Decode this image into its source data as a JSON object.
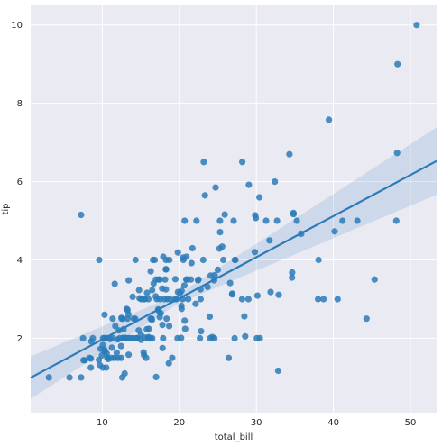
{
  "chart_data": {
    "type": "scatter",
    "title": "",
    "xlabel": "total_bill",
    "ylabel": "tip",
    "xlim": [
      0.7,
      53.4
    ],
    "ylim": [
      0.1,
      10.5
    ],
    "xticks": [
      10,
      20,
      30,
      40,
      50
    ],
    "yticks": [
      2,
      4,
      6,
      8,
      10
    ],
    "grid": true,
    "colors": {
      "point": "#2b7bb9",
      "line": "#2b7bb9",
      "band": "#2b7bb9",
      "background": "#eaeaf2",
      "grid": "#ffffff"
    },
    "regression": {
      "x_range": [
        0.7,
        53.4
      ],
      "intercept": 0.92,
      "slope": 0.105,
      "ci_halfwidth_at_mean": 0.12,
      "ci_growth": 0.022,
      "x_mean": 19.8
    },
    "points": [
      [
        3.07,
        1.0
      ],
      [
        5.75,
        1.0
      ],
      [
        7.25,
        1.0
      ],
      [
        7.25,
        5.15
      ],
      [
        7.51,
        2.0
      ],
      [
        7.56,
        1.44
      ],
      [
        7.74,
        1.44
      ],
      [
        8.35,
        1.5
      ],
      [
        8.51,
        1.25
      ],
      [
        8.52,
        1.48
      ],
      [
        8.58,
        1.92
      ],
      [
        8.77,
        2.0
      ],
      [
        9.55,
        1.45
      ],
      [
        9.6,
        4.0
      ],
      [
        9.68,
        1.32
      ],
      [
        9.78,
        1.73
      ],
      [
        9.94,
        1.56
      ],
      [
        10.07,
        1.83
      ],
      [
        10.07,
        1.25
      ],
      [
        10.09,
        2.0
      ],
      [
        10.27,
        1.71
      ],
      [
        10.29,
        2.6
      ],
      [
        10.33,
        1.67
      ],
      [
        10.33,
        2.0
      ],
      [
        10.34,
        1.66
      ],
      [
        10.34,
        2.0
      ],
      [
        10.51,
        1.25
      ],
      [
        10.59,
        1.61
      ],
      [
        10.63,
        2.0
      ],
      [
        10.65,
        1.5
      ],
      [
        10.77,
        1.47
      ],
      [
        11.02,
        1.98
      ],
      [
        11.17,
        1.5
      ],
      [
        11.24,
        1.76
      ],
      [
        11.35,
        2.5
      ],
      [
        11.38,
        2.0
      ],
      [
        11.59,
        1.5
      ],
      [
        11.61,
        3.39
      ],
      [
        11.69,
        2.31
      ],
      [
        11.87,
        1.63
      ],
      [
        12.02,
        1.97
      ],
      [
        12.03,
        1.5
      ],
      [
        12.16,
        2.2
      ],
      [
        12.26,
        2.0
      ],
      [
        12.43,
        1.8
      ],
      [
        12.46,
        1.5
      ],
      [
        12.48,
        2.52
      ],
      [
        12.54,
        2.5
      ],
      [
        12.6,
        1.0
      ],
      [
        12.66,
        2.5
      ],
      [
        12.69,
        2.0
      ],
      [
        12.74,
        2.01
      ],
      [
        12.76,
        2.23
      ],
      [
        12.9,
        1.1
      ],
      [
        13.0,
        2.0
      ],
      [
        13.03,
        2.0
      ],
      [
        13.13,
        2.0
      ],
      [
        13.16,
        2.75
      ],
      [
        13.27,
        2.5
      ],
      [
        13.28,
        2.72
      ],
      [
        13.37,
        2.0
      ],
      [
        13.39,
        2.61
      ],
      [
        13.42,
        1.58
      ],
      [
        13.42,
        3.48
      ],
      [
        13.51,
        2.0
      ],
      [
        13.81,
        2.0
      ],
      [
        13.94,
        3.06
      ],
      [
        14.07,
        2.5
      ],
      [
        14.15,
        2.0
      ],
      [
        14.26,
        2.5
      ],
      [
        14.31,
        4.0
      ],
      [
        14.48,
        2.0
      ],
      [
        14.52,
        2.0
      ],
      [
        14.73,
        2.2
      ],
      [
        14.78,
        3.23
      ],
      [
        14.83,
        3.02
      ],
      [
        15.01,
        2.09
      ],
      [
        15.04,
        1.96
      ],
      [
        15.06,
        3.0
      ],
      [
        15.36,
        1.64
      ],
      [
        15.38,
        3.0
      ],
      [
        15.42,
        1.57
      ],
      [
        15.48,
        2.02
      ],
      [
        15.53,
        3.0
      ],
      [
        15.69,
        1.5
      ],
      [
        15.77,
        2.23
      ],
      [
        15.81,
        3.16
      ],
      [
        15.95,
        2.0
      ],
      [
        15.98,
        2.03
      ],
      [
        15.98,
        3.0
      ],
      [
        16.0,
        2.0
      ],
      [
        16.04,
        2.24
      ],
      [
        16.27,
        2.5
      ],
      [
        16.29,
        3.71
      ],
      [
        16.31,
        2.0
      ],
      [
        16.4,
        2.5
      ],
      [
        16.45,
        2.47
      ],
      [
        16.47,
        3.23
      ],
      [
        16.49,
        2.0
      ],
      [
        16.58,
        4.0
      ],
      [
        16.66,
        3.4
      ],
      [
        16.82,
        4.0
      ],
      [
        16.93,
        3.07
      ],
      [
        16.97,
        3.5
      ],
      [
        16.99,
        1.01
      ],
      [
        17.07,
        3.0
      ],
      [
        17.26,
        2.74
      ],
      [
        17.29,
        2.71
      ],
      [
        17.31,
        3.5
      ],
      [
        17.46,
        2.54
      ],
      [
        17.47,
        3.5
      ],
      [
        17.51,
        3.0
      ],
      [
        17.59,
        2.64
      ],
      [
        17.78,
        3.27
      ],
      [
        17.81,
        2.34
      ],
      [
        17.82,
        1.75
      ],
      [
        17.89,
        2.0
      ],
      [
        17.92,
        4.08
      ],
      [
        18.04,
        3.0
      ],
      [
        18.15,
        3.5
      ],
      [
        18.24,
        3.76
      ],
      [
        18.26,
        3.25
      ],
      [
        18.28,
        4.0
      ],
      [
        18.29,
        3.76
      ],
      [
        18.35,
        2.5
      ],
      [
        18.43,
        3.0
      ],
      [
        18.64,
        1.36
      ],
      [
        18.69,
        2.31
      ],
      [
        18.71,
        4.0
      ],
      [
        18.78,
        3.0
      ],
      [
        19.08,
        1.5
      ],
      [
        19.44,
        3.0
      ],
      [
        19.49,
        3.51
      ],
      [
        19.65,
        3.0
      ],
      [
        19.77,
        2.0
      ],
      [
        19.81,
        4.19
      ],
      [
        19.82,
        3.18
      ],
      [
        20.08,
        3.15
      ],
      [
        20.23,
        2.01
      ],
      [
        20.27,
        2.83
      ],
      [
        20.29,
        2.75
      ],
      [
        20.29,
        3.21
      ],
      [
        20.45,
        3.0
      ],
      [
        20.49,
        4.06
      ],
      [
        20.53,
        4.0
      ],
      [
        20.65,
        3.35
      ],
      [
        20.69,
        2.45
      ],
      [
        20.69,
        5.0
      ],
      [
        20.76,
        2.24
      ],
      [
        20.9,
        3.5
      ],
      [
        20.92,
        4.08
      ],
      [
        21.01,
        3.5
      ],
      [
        21.16,
        3.0
      ],
      [
        21.5,
        3.5
      ],
      [
        21.58,
        3.92
      ],
      [
        21.7,
        4.3
      ],
      [
        22.12,
        2.88
      ],
      [
        22.23,
        5.0
      ],
      [
        22.42,
        3.48
      ],
      [
        22.49,
        3.5
      ],
      [
        22.67,
        2.0
      ],
      [
        22.75,
        3.25
      ],
      [
        22.76,
        3.0
      ],
      [
        22.82,
        2.18
      ],
      [
        23.1,
        4.0
      ],
      [
        23.17,
        6.5
      ],
      [
        23.33,
        5.65
      ],
      [
        23.68,
        3.31
      ],
      [
        23.95,
        2.55
      ],
      [
        24.01,
        2.0
      ],
      [
        24.06,
        3.6
      ],
      [
        24.27,
        2.03
      ],
      [
        24.52,
        3.48
      ],
      [
        24.55,
        2.0
      ],
      [
        24.59,
        3.61
      ],
      [
        24.71,
        5.85
      ],
      [
        25.0,
        3.75
      ],
      [
        25.21,
        4.29
      ],
      [
        25.28,
        5.0
      ],
      [
        25.29,
        4.71
      ],
      [
        25.56,
        4.34
      ],
      [
        25.71,
        4.0
      ],
      [
        25.89,
        5.16
      ],
      [
        26.41,
        1.5
      ],
      [
        26.59,
        3.41
      ],
      [
        26.86,
        3.14
      ],
      [
        26.88,
        3.12
      ],
      [
        27.05,
        5.0
      ],
      [
        27.18,
        2.0
      ],
      [
        27.2,
        4.0
      ],
      [
        27.28,
        4.0
      ],
      [
        28.15,
        3.0
      ],
      [
        28.17,
        6.5
      ],
      [
        28.44,
        2.56
      ],
      [
        28.55,
        2.05
      ],
      [
        28.97,
        3.0
      ],
      [
        29.03,
        5.92
      ],
      [
        29.8,
        4.2
      ],
      [
        29.85,
        5.14
      ],
      [
        29.93,
        5.07
      ],
      [
        30.06,
        2.0
      ],
      [
        30.14,
        3.09
      ],
      [
        30.4,
        5.6
      ],
      [
        30.46,
        2.0
      ],
      [
        31.27,
        5.0
      ],
      [
        31.71,
        4.5
      ],
      [
        31.85,
        3.18
      ],
      [
        32.4,
        6.0
      ],
      [
        32.68,
        5.0
      ],
      [
        32.83,
        1.17
      ],
      [
        32.9,
        3.11
      ],
      [
        34.3,
        6.7
      ],
      [
        34.63,
        3.55
      ],
      [
        34.65,
        3.68
      ],
      [
        34.81,
        5.2
      ],
      [
        34.83,
        5.17
      ],
      [
        35.26,
        5.0
      ],
      [
        35.83,
        4.67
      ],
      [
        38.01,
        3.0
      ],
      [
        38.07,
        4.0
      ],
      [
        38.73,
        3.0
      ],
      [
        39.42,
        7.58
      ],
      [
        40.17,
        4.73
      ],
      [
        40.55,
        3.0
      ],
      [
        41.19,
        5.0
      ],
      [
        43.11,
        5.0
      ],
      [
        44.3,
        2.5
      ],
      [
        45.35,
        3.5
      ],
      [
        48.17,
        5.0
      ],
      [
        48.27,
        6.73
      ],
      [
        48.33,
        9.0
      ],
      [
        50.81,
        10.0
      ]
    ]
  }
}
